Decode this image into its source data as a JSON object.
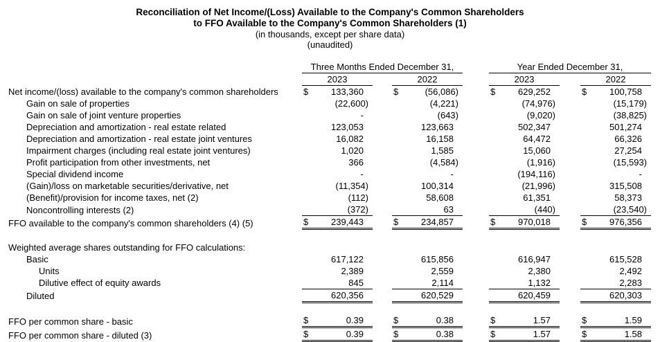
{
  "title": {
    "line1": "Reconciliation of Net Income/(Loss) Available to the Company's Common Shareholders",
    "line2": "to FFO Available to the Company's Common Shareholders (1)",
    "line3": "(in thousands, except per share data)",
    "line4": "(unaudited)"
  },
  "table": {
    "groups": [
      {
        "label": "Three Months Ended December 31,",
        "years": [
          "2023",
          "2022"
        ]
      },
      {
        "label": "Year Ended December 31,",
        "years": [
          "2023",
          "2022"
        ]
      }
    ],
    "rows": [
      {
        "label": "Net income/(loss) available to the company's common shareholders",
        "indent": 0,
        "dollar": true,
        "values": [
          "133,360",
          "(56,086)",
          "629,252",
          "100,758"
        ]
      },
      {
        "label": "Gain on sale of properties",
        "indent": 1,
        "values": [
          "(22,600)",
          "(4,221)",
          "(74,976)",
          "(15,179)"
        ]
      },
      {
        "label": "Gain on sale of joint venture properties",
        "indent": 1,
        "values": [
          "-",
          "(643)",
          "(9,020)",
          "(38,825)"
        ]
      },
      {
        "label": "Depreciation and amortization - real estate related",
        "indent": 1,
        "values": [
          "123,053",
          "123,663",
          "502,347",
          "501,274"
        ]
      },
      {
        "label": "Depreciation and amortization - real estate joint ventures",
        "indent": 1,
        "values": [
          "16,082",
          "16,158",
          "64,472",
          "66,326"
        ]
      },
      {
        "label": "Impairment charges (including real estate joint ventures)",
        "indent": 1,
        "values": [
          "1,020",
          "1,585",
          "15,060",
          "27,254"
        ]
      },
      {
        "label": "Profit participation from other investments, net",
        "indent": 1,
        "values": [
          "366",
          "(4,584)",
          "(1,916)",
          "(15,593)"
        ]
      },
      {
        "label": "Special dividend income",
        "indent": 1,
        "values": [
          "-",
          "-",
          "(194,116)",
          "-"
        ]
      },
      {
        "label": "(Gain)/loss on marketable securities/derivative, net",
        "indent": 1,
        "values": [
          "(11,354)",
          "100,314",
          "(21,996)",
          "315,508"
        ]
      },
      {
        "label": "(Benefit)/provision for income taxes, net (2)",
        "indent": 1,
        "values": [
          "(112)",
          "58,608",
          "61,351",
          "58,373"
        ]
      },
      {
        "label": "Noncontrolling interests (2)",
        "indent": 1,
        "values": [
          "(372)",
          "63",
          "(440)",
          "(23,540)"
        ],
        "rule": "single"
      },
      {
        "label": "FFO available to the company's common shareholders (4) (5)",
        "indent": 0,
        "dollar": true,
        "values": [
          "239,443",
          "234,857",
          "970,018",
          "976,356"
        ],
        "rule": "double"
      },
      {
        "type": "spacer"
      },
      {
        "label": "Weighted average shares outstanding for FFO calculations:",
        "indent": 0,
        "values": null
      },
      {
        "label": "Basic",
        "indent": 1,
        "values": [
          "617,122",
          "615,856",
          "616,947",
          "615,528"
        ]
      },
      {
        "label": "Units",
        "indent": 2,
        "values": [
          "2,389",
          "2,559",
          "2,380",
          "2,492"
        ]
      },
      {
        "label": "Dilutive effect of equity awards",
        "indent": 2,
        "values": [
          "845",
          "2,114",
          "1,132",
          "2,283"
        ],
        "rule": "single"
      },
      {
        "label": "Diluted",
        "indent": 1,
        "values": [
          "620,356",
          "620,529",
          "620,459",
          "620,303"
        ],
        "rule": "double"
      },
      {
        "type": "spacer"
      },
      {
        "label": "FFO per common share - basic",
        "indent": 0,
        "dollar": true,
        "values": [
          "0.39",
          "0.38",
          "1.57",
          "1.59"
        ],
        "rule": "double"
      },
      {
        "label": "FFO per common share - diluted (3)",
        "indent": 0,
        "dollar": true,
        "values": [
          "0.39",
          "0.38",
          "1.57",
          "1.58"
        ],
        "rule": "double"
      }
    ]
  }
}
